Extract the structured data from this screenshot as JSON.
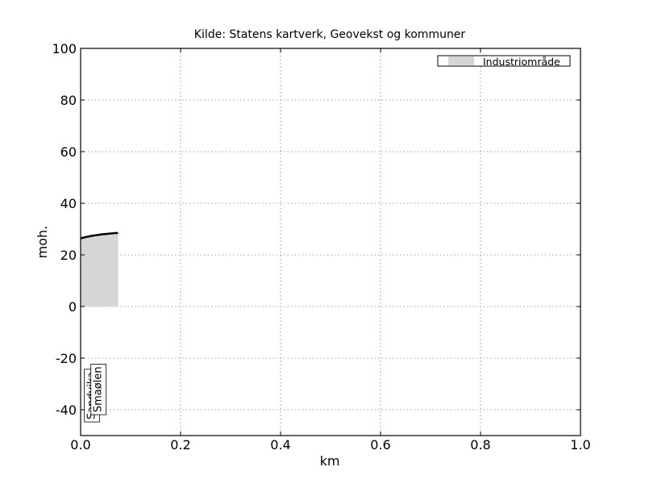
{
  "chart_data": {
    "type": "area",
    "title": "Kilde: Statens kartverk, Geovekst og kommuner",
    "xlabel": "km",
    "ylabel": "moh.",
    "xlim": [
      0.0,
      1.0
    ],
    "ylim": [
      -50,
      100
    ],
    "xticks": [
      "0.0",
      "0.2",
      "0.4",
      "0.6",
      "0.8",
      "1.0"
    ],
    "yticks": [
      "100",
      "80",
      "60",
      "40",
      "20",
      "0",
      "-20",
      "-40"
    ],
    "xtick_values": [
      0.0,
      0.2,
      0.4,
      0.6,
      0.8,
      1.0
    ],
    "ytick_values": [
      100,
      80,
      60,
      40,
      20,
      0,
      -20,
      -40
    ],
    "grid": true,
    "legend": {
      "position": "top-right",
      "entries": [
        "Industriområde"
      ]
    },
    "series": [
      {
        "name": "Industriområde",
        "x": [
          0.0,
          0.01,
          0.02,
          0.03,
          0.04,
          0.05,
          0.06,
          0.075
        ],
        "y": [
          26.4,
          26.9,
          27.3,
          27.6,
          27.9,
          28.1,
          28.3,
          28.5
        ]
      }
    ],
    "place_labels": [
      {
        "text": "Sandvika",
        "x": 0.022,
        "y": -24
      },
      {
        "text": "Smaølen",
        "x": 0.035,
        "y": -22
      }
    ],
    "colors": {
      "fill": "#d6d6d6",
      "line": "#000000",
      "grid": "#808080"
    }
  }
}
